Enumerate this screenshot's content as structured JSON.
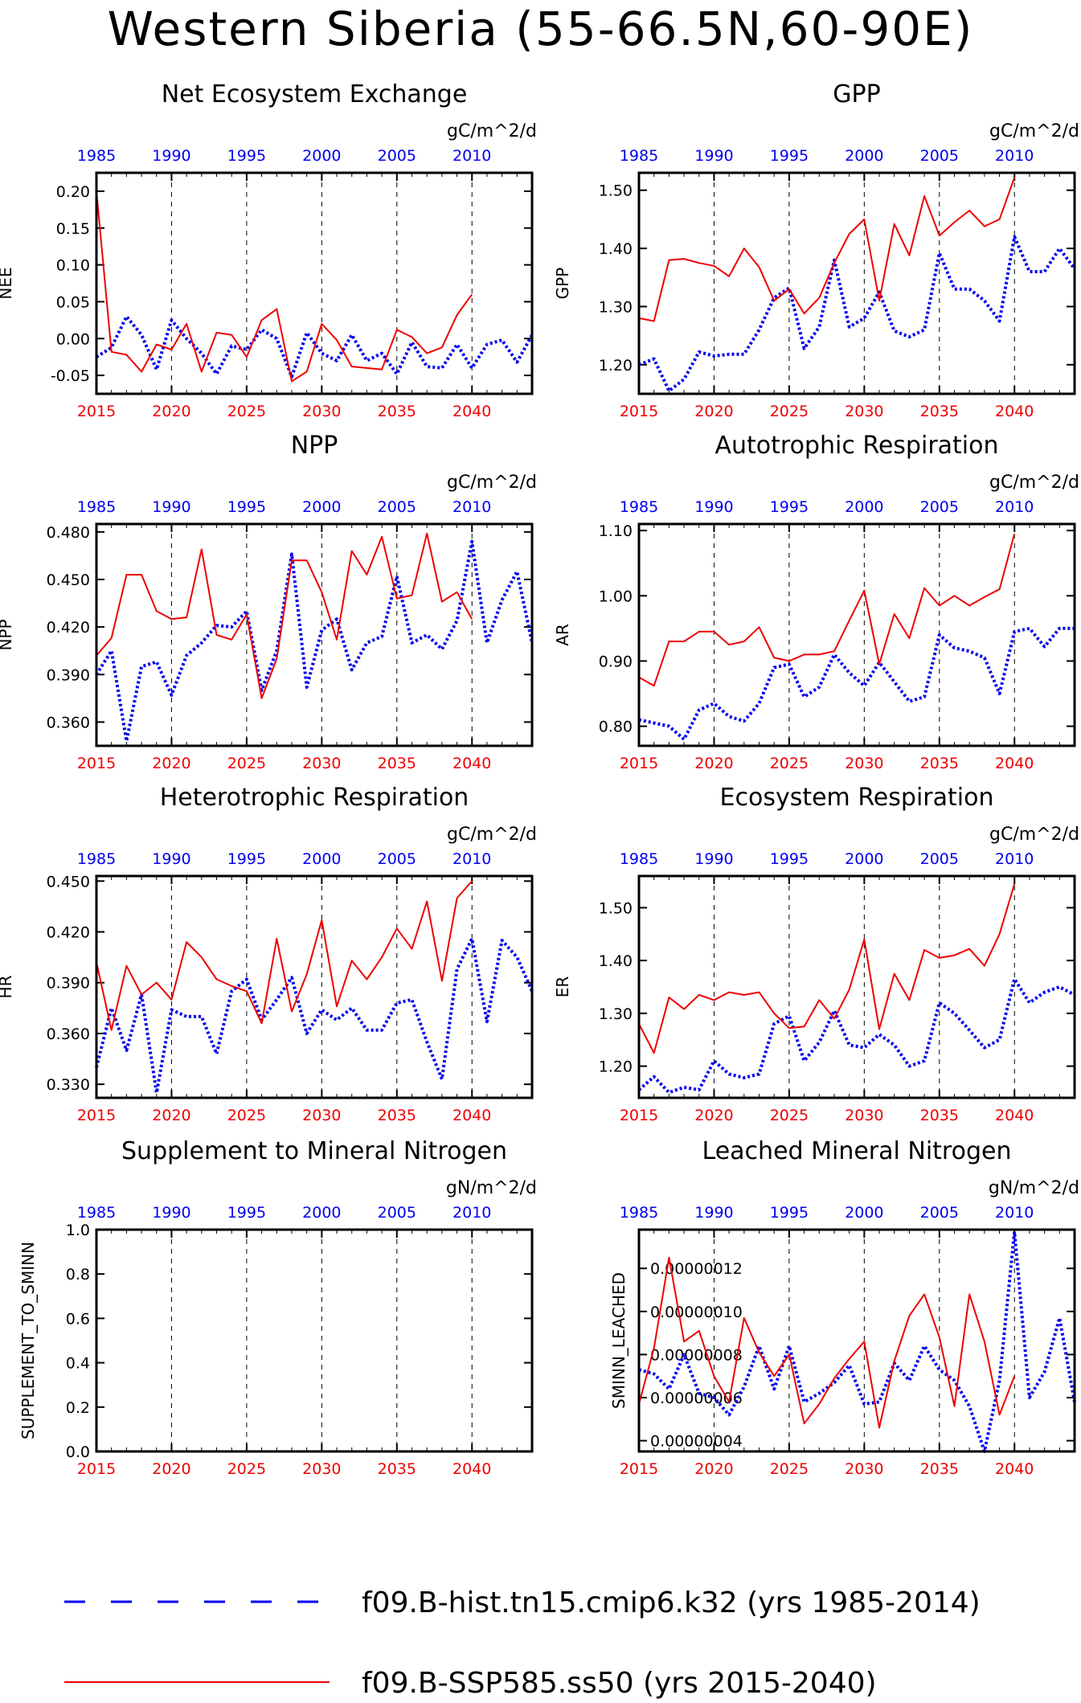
{
  "figure_title": "Western Siberia (55-66.5N,60-90E)",
  "colors": {
    "hist": "#0000ee",
    "ssp": "#ee0000",
    "axis": "#000000",
    "grid": "#000000"
  },
  "legend": [
    {
      "label": "f09.B-hist.tn15.cmip6.k32 (yrs 1985-2014)",
      "color": "#0000ee",
      "style": "dashed"
    },
    {
      "label": "f09.B-SSP585.ss50 (yrs 2015-2040)",
      "color": "#ee0000",
      "style": "solid"
    }
  ],
  "bottom_axis_ticks": [
    "2015",
    "2020",
    "2025",
    "2030",
    "2035",
    "2040"
  ],
  "top_axis_ticks": [
    "1985",
    "1990",
    "1995",
    "2000",
    "2005",
    "2010"
  ],
  "chart_data": [
    {
      "type": "line",
      "title": "Net Ecosystem Exchange",
      "units": "gC/m^2/d",
      "ylabel": "NEE",
      "ylim": [
        -0.075,
        0.225
      ],
      "yticks": [
        -0.05,
        0.0,
        0.05,
        0.1,
        0.15,
        0.2
      ],
      "ytick_labels": [
        "-0.05",
        "0.00",
        "0.05",
        "0.10",
        "0.15",
        "0.20"
      ],
      "series": [
        {
          "values": [
            -0.025,
            -0.012,
            0.03,
            0.005,
            -0.042,
            0.025,
            0.0,
            -0.02,
            -0.048,
            -0.01,
            -0.015,
            0.012,
            0.0,
            -0.052,
            0.008,
            -0.02,
            -0.03,
            0.005,
            -0.03,
            -0.02,
            -0.048,
            -0.005,
            -0.038,
            -0.04,
            -0.008,
            -0.04,
            -0.008,
            -0.002,
            -0.032,
            0.005
          ]
        },
        {
          "values": [
            0.2,
            -0.018,
            -0.022,
            -0.045,
            -0.008,
            -0.015,
            0.02,
            -0.045,
            0.008,
            0.005,
            -0.025,
            0.025,
            0.04,
            -0.058,
            -0.045,
            0.02,
            -0.002,
            -0.038,
            -0.04,
            -0.042,
            0.012,
            0.002,
            -0.02,
            -0.012,
            0.032,
            0.06
          ]
        }
      ]
    },
    {
      "type": "line",
      "title": "GPP",
      "units": "gC/m^2/d",
      "ylabel": "GPP",
      "ylim": [
        1.15,
        1.53
      ],
      "yticks": [
        1.2,
        1.3,
        1.4,
        1.5
      ],
      "ytick_labels": [
        "1.20",
        "1.30",
        "1.40",
        "1.50"
      ],
      "series": [
        {
          "values": [
            1.2,
            1.21,
            1.155,
            1.175,
            1.222,
            1.215,
            1.218,
            1.218,
            1.26,
            1.315,
            1.332,
            1.228,
            1.265,
            1.38,
            1.265,
            1.28,
            1.325,
            1.258,
            1.248,
            1.26,
            1.392,
            1.33,
            1.33,
            1.31,
            1.275,
            1.42,
            1.36,
            1.36,
            1.4,
            1.365
          ]
        },
        {
          "values": [
            1.28,
            1.275,
            1.38,
            1.382,
            1.375,
            1.37,
            1.352,
            1.4,
            1.368,
            1.31,
            1.33,
            1.288,
            1.315,
            1.375,
            1.425,
            1.45,
            1.31,
            1.442,
            1.388,
            1.49,
            1.422,
            1.445,
            1.465,
            1.438,
            1.45,
            1.522
          ]
        }
      ]
    },
    {
      "type": "line",
      "title": "NPP",
      "units": "gC/m^2/d",
      "ylabel": "NPP",
      "ylim": [
        0.345,
        0.485
      ],
      "yticks": [
        0.36,
        0.39,
        0.42,
        0.45,
        0.48
      ],
      "ytick_labels": [
        "0.360",
        "0.390",
        "0.420",
        "0.450",
        "0.480"
      ],
      "series": [
        {
          "values": [
            0.39,
            0.405,
            0.348,
            0.395,
            0.398,
            0.377,
            0.402,
            0.41,
            0.421,
            0.42,
            0.43,
            0.38,
            0.405,
            0.466,
            0.382,
            0.418,
            0.425,
            0.393,
            0.41,
            0.414,
            0.452,
            0.41,
            0.415,
            0.406,
            0.424,
            0.474,
            0.41,
            0.437,
            0.455,
            0.41
          ]
        },
        {
          "values": [
            0.402,
            0.413,
            0.453,
            0.453,
            0.43,
            0.425,
            0.426,
            0.469,
            0.415,
            0.412,
            0.428,
            0.375,
            0.4,
            0.462,
            0.462,
            0.442,
            0.412,
            0.468,
            0.453,
            0.477,
            0.438,
            0.44,
            0.479,
            0.436,
            0.442,
            0.425
          ]
        }
      ]
    },
    {
      "type": "line",
      "title": "Autotrophic Respiration",
      "units": "gC/m^2/d",
      "ylabel": "AR",
      "ylim": [
        0.77,
        1.11
      ],
      "yticks": [
        0.8,
        0.9,
        1.0,
        1.1
      ],
      "ytick_labels": [
        "0.80",
        "0.90",
        "1.00",
        "1.10"
      ],
      "series": [
        {
          "values": [
            0.81,
            0.805,
            0.8,
            0.78,
            0.825,
            0.835,
            0.815,
            0.808,
            0.835,
            0.89,
            0.895,
            0.845,
            0.86,
            0.91,
            0.882,
            0.862,
            0.898,
            0.868,
            0.838,
            0.845,
            0.94,
            0.92,
            0.915,
            0.905,
            0.85,
            0.945,
            0.95,
            0.922,
            0.95,
            0.95
          ]
        },
        {
          "values": [
            0.875,
            0.862,
            0.93,
            0.93,
            0.945,
            0.945,
            0.925,
            0.93,
            0.952,
            0.905,
            0.9,
            0.91,
            0.91,
            0.915,
            0.962,
            1.008,
            0.895,
            0.972,
            0.935,
            1.012,
            0.985,
            1.0,
            0.985,
            0.998,
            1.01,
            1.095
          ]
        }
      ]
    },
    {
      "type": "line",
      "title": "Heterotrophic Respiration",
      "units": "gC/m^2/d",
      "ylabel": "HR",
      "ylim": [
        0.322,
        0.453
      ],
      "yticks": [
        0.33,
        0.36,
        0.39,
        0.42,
        0.45
      ],
      "ytick_labels": [
        "0.330",
        "0.360",
        "0.390",
        "0.420",
        "0.450"
      ],
      "series": [
        {
          "values": [
            0.34,
            0.375,
            0.35,
            0.383,
            0.325,
            0.374,
            0.37,
            0.37,
            0.348,
            0.385,
            0.392,
            0.368,
            0.38,
            0.393,
            0.36,
            0.374,
            0.368,
            0.375,
            0.362,
            0.362,
            0.378,
            0.38,
            0.355,
            0.333,
            0.398,
            0.416,
            0.367,
            0.415,
            0.405,
            0.385
          ]
        },
        {
          "values": [
            0.402,
            0.362,
            0.4,
            0.383,
            0.39,
            0.38,
            0.414,
            0.405,
            0.392,
            0.388,
            0.385,
            0.366,
            0.416,
            0.373,
            0.395,
            0.427,
            0.376,
            0.403,
            0.392,
            0.405,
            0.422,
            0.41,
            0.438,
            0.391,
            0.44,
            0.45
          ]
        }
      ]
    },
    {
      "type": "line",
      "title": "Ecosystem Respiration",
      "units": "gC/m^2/d",
      "ylabel": "ER",
      "ylim": [
        1.14,
        1.56
      ],
      "yticks": [
        1.2,
        1.3,
        1.4,
        1.5
      ],
      "ytick_labels": [
        "1.20",
        "1.30",
        "1.40",
        "1.50"
      ],
      "series": [
        {
          "values": [
            1.155,
            1.18,
            1.15,
            1.16,
            1.155,
            1.21,
            1.185,
            1.178,
            1.185,
            1.28,
            1.295,
            1.21,
            1.245,
            1.305,
            1.24,
            1.235,
            1.26,
            1.24,
            1.2,
            1.21,
            1.32,
            1.3,
            1.268,
            1.235,
            1.25,
            1.365,
            1.32,
            1.34,
            1.35,
            1.335
          ]
        },
        {
          "values": [
            1.28,
            1.225,
            1.33,
            1.308,
            1.335,
            1.325,
            1.34,
            1.335,
            1.34,
            1.3,
            1.272,
            1.275,
            1.325,
            1.29,
            1.345,
            1.44,
            1.27,
            1.375,
            1.325,
            1.42,
            1.405,
            1.41,
            1.422,
            1.39,
            1.45,
            1.545
          ]
        }
      ]
    },
    {
      "type": "line",
      "title": "Supplement to Mineral Nitrogen",
      "units": "gN/m^2/d",
      "ylabel": "SUPPLEMENT_TO_SMINN",
      "ylim": [
        0.0,
        1.0
      ],
      "yticks": [
        0.0,
        0.2,
        0.4,
        0.6,
        0.8,
        1.0
      ],
      "ytick_labels": [
        "0.0",
        "0.2",
        "0.4",
        "0.6",
        "0.8",
        "1.0"
      ],
      "series": []
    },
    {
      "type": "line",
      "title": "Leached Mineral Nitrogen",
      "units": "gN/m^2/d",
      "ylabel": "SMINN_LEACHED",
      "ylim": [
        3.5e-08,
        1.38e-07
      ],
      "yticks": [
        4e-08,
        6e-08,
        8e-08,
        1e-07,
        1.2e-07
      ],
      "ytick_labels": [
        "0.00000004",
        "0.00000006",
        "0.00000008",
        "0.00000010",
        "0.00000012"
      ],
      "series": [
        {
          "values": [
            7.3e-08,
            7.1e-08,
            6.4e-08,
            8e-08,
            6.2e-08,
            6e-08,
            5.2e-08,
            6.5e-08,
            8.4e-08,
            6.4e-08,
            8.4e-08,
            5.8e-08,
            6.2e-08,
            6.7e-08,
            7.5e-08,
            5.7e-08,
            5.8e-08,
            7.6e-08,
            6.8e-08,
            8.4e-08,
            7.3e-08,
            6.8e-08,
            5.6e-08,
            3.5e-08,
            6.8e-08,
            1.37e-07,
            6e-08,
            7.2e-08,
            9.7e-08,
            5.8e-08
          ]
        },
        {
          "values": [
            5.7e-08,
            8.3e-08,
            1.25e-07,
            8.6e-08,
            9.1e-08,
            7e-08,
            5.8e-08,
            9.7e-08,
            8.1e-08,
            7e-08,
            8e-08,
            4.8e-08,
            5.7e-08,
            6.9e-08,
            7.8e-08,
            8.6e-08,
            4.6e-08,
            7.7e-08,
            9.8e-08,
            1.08e-07,
            8.8e-08,
            5.6e-08,
            1.08e-07,
            8.6e-08,
            5.2e-08,
            7e-08
          ]
        }
      ]
    }
  ]
}
